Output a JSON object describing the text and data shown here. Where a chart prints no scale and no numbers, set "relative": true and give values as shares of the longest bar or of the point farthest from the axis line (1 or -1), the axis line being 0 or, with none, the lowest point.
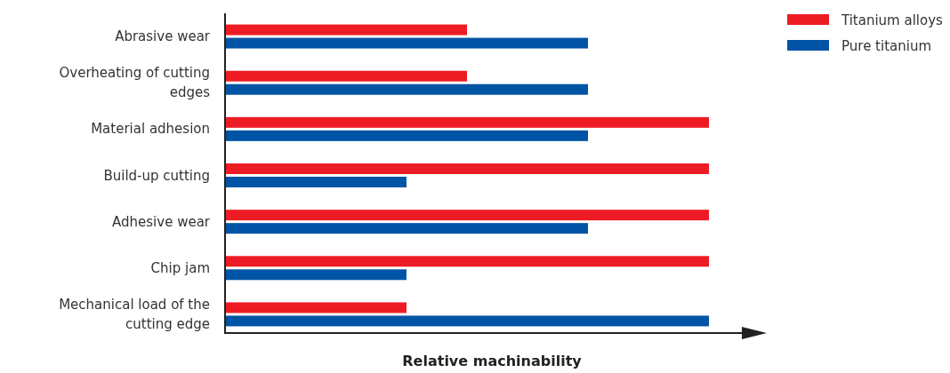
{
  "chart_data": {
    "type": "bar",
    "orientation": "horizontal",
    "relative": true,
    "xlabel": "Relative machinability",
    "legend": "top right",
    "categories": [
      "Abrasive wear",
      "Overheating of cutting edges",
      "Material adhesion",
      "Build-up cutting",
      "Adhesive wear",
      "Chip jam",
      "Mechanical load of the cutting edge"
    ],
    "series": [
      {
        "name": "Titanium alloys",
        "color": "#ed1c24",
        "values": [
          0.5,
          0.5,
          1,
          1,
          1,
          1,
          0.375
        ]
      },
      {
        "name": "Pure titanium",
        "color": "#0054a6",
        "values": [
          0.75,
          0.75,
          0.75,
          0.375,
          0.75,
          0.375,
          1
        ]
      }
    ]
  }
}
